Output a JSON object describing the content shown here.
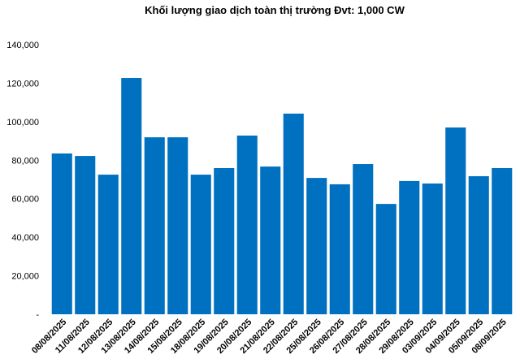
{
  "chart_data": {
    "type": "bar",
    "title": "Khối lượng giao dịch toàn thị trường Đvt: 1,000 CW",
    "categories": [
      "08/08/2025",
      "11/08/2025",
      "12/08/2025",
      "13/08/2025",
      "14/08/2025",
      "15/08/2025",
      "18/08/2025",
      "19/08/2025",
      "20/08/2025",
      "21/08/2025",
      "22/08/2025",
      "25/08/2025",
      "26/08/2025",
      "27/08/2025",
      "28/08/2025",
      "29/08/2025",
      "03/09/2025",
      "04/09/2025",
      "05/09/2025",
      "08/09/2025"
    ],
    "values": [
      83500,
      82200,
      72500,
      122700,
      91900,
      91900,
      72500,
      75900,
      92800,
      76700,
      104200,
      70800,
      67500,
      78000,
      57300,
      69200,
      67900,
      97000,
      71700,
      75900
    ],
    "color": "#0070c0",
    "ylim": [
      0,
      140000
    ],
    "yticks": [
      {
        "value": 0,
        "label": "-"
      },
      {
        "value": 20000,
        "label": "20,000"
      },
      {
        "value": 40000,
        "label": "40,000"
      },
      {
        "value": 60000,
        "label": "60,000"
      },
      {
        "value": 80000,
        "label": "80,000"
      },
      {
        "value": 100000,
        "label": "100,000"
      },
      {
        "value": 120000,
        "label": "120,000"
      },
      {
        "value": 140000,
        "label": "140,000"
      }
    ],
    "grid": false
  }
}
